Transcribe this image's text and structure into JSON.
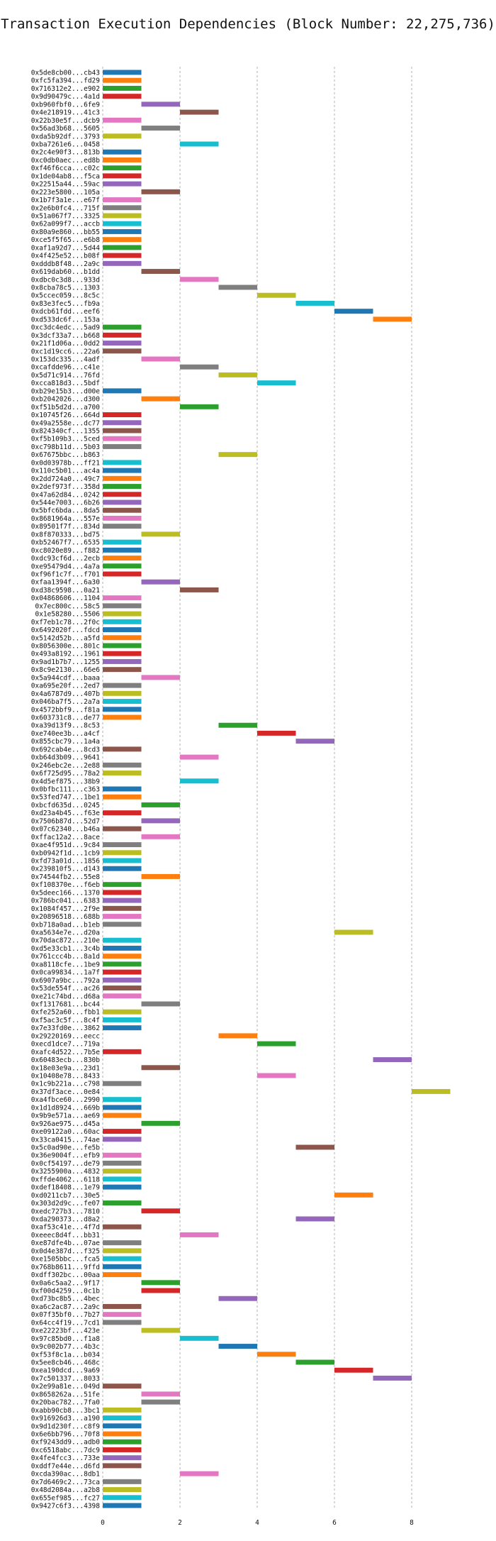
{
  "chart_data": {
    "type": "bar",
    "orientation": "horizontal-gantt",
    "title": "Transaction Execution Dependencies (Block Number: 22,275,736)",
    "xlabel": "",
    "ylabel": "",
    "xlim": [
      0,
      10
    ],
    "xticks": [
      0,
      2,
      4,
      6,
      8
    ],
    "grid": "vertical dashed",
    "palette": [
      "#1f77b4",
      "#ff7f0e",
      "#2ca02c",
      "#d62728",
      "#9467bd",
      "#8c564b",
      "#e377c2",
      "#7f7f7f",
      "#bcbd22",
      "#17becf"
    ],
    "tasks": [
      {
        "label": "0x5de8cb00...cb43",
        "start": 0,
        "end": 1
      },
      {
        "label": "0xfc5fa394...fd29",
        "start": 0,
        "end": 1
      },
      {
        "label": "0x716312e2...e902",
        "start": 0,
        "end": 1
      },
      {
        "label": "0x9d90479c...4a1d",
        "start": 0,
        "end": 1
      },
      {
        "label": "0xb960fbf0...6fe9",
        "start": 1,
        "end": 2
      },
      {
        "label": "0x4e218919...41c3",
        "start": 2,
        "end": 3
      },
      {
        "label": "0x22b30e5f...dcb9",
        "start": 0,
        "end": 1
      },
      {
        "label": "0x56ad3b68...5605",
        "start": 1,
        "end": 2
      },
      {
        "label": "0xda5b92df...3793",
        "start": 0,
        "end": 1
      },
      {
        "label": "0xba7261e6...0458",
        "start": 2,
        "end": 3
      },
      {
        "label": "0x2c4e90f3...813b",
        "start": 0,
        "end": 1
      },
      {
        "label": "0xc0db0aec...ed8b",
        "start": 0,
        "end": 1
      },
      {
        "label": "0xf46f6cca...c02c",
        "start": 0,
        "end": 1
      },
      {
        "label": "0x1de04ab8...f5ca",
        "start": 0,
        "end": 1
      },
      {
        "label": "0x22515a44...59ac",
        "start": 0,
        "end": 1
      },
      {
        "label": "0x223e5800...105a",
        "start": 1,
        "end": 2
      },
      {
        "label": "0x1b7f3a1e...e67f",
        "start": 0,
        "end": 1
      },
      {
        "label": "0x2e6b0fc4...715f",
        "start": 0,
        "end": 1
      },
      {
        "label": "0x51a067f7...3325",
        "start": 0,
        "end": 1
      },
      {
        "label": "0x62a099f7...accb",
        "start": 0,
        "end": 1
      },
      {
        "label": "0x80a9e860...bb55",
        "start": 0,
        "end": 1
      },
      {
        "label": "0xce5f5f65...e6b8",
        "start": 0,
        "end": 1
      },
      {
        "label": "0xaf1a92d7...5d44",
        "start": 0,
        "end": 1
      },
      {
        "label": "0x4f425e52...b08f",
        "start": 0,
        "end": 1
      },
      {
        "label": "0xdddb8f48...2a9c",
        "start": 0,
        "end": 1
      },
      {
        "label": "0x619dab60...b1dd",
        "start": 1,
        "end": 2
      },
      {
        "label": "0xdbc0c3d8...933d",
        "start": 2,
        "end": 3
      },
      {
        "label": "0x8cba78c5...1303",
        "start": 3,
        "end": 4
      },
      {
        "label": "0x5ccec059...8c5c",
        "start": 4,
        "end": 5
      },
      {
        "label": "0x83e3fec5...fb9a",
        "start": 5,
        "end": 6
      },
      {
        "label": "0xdcb61fdd...eef6",
        "start": 6,
        "end": 7
      },
      {
        "label": "0xd533dc6f...153a",
        "start": 7,
        "end": 8
      },
      {
        "label": "0xc3dc4edc...5ad9",
        "start": 0,
        "end": 1
      },
      {
        "label": "0x3dcf33a7...b668",
        "start": 0,
        "end": 1
      },
      {
        "label": "0x21f1d06a...0dd2",
        "start": 0,
        "end": 1
      },
      {
        "label": "0xc1d19cc6...22a6",
        "start": 0,
        "end": 1
      },
      {
        "label": "0x153dc335...4adf",
        "start": 1,
        "end": 2
      },
      {
        "label": "0xcafdde96...c41e",
        "start": 2,
        "end": 3
      },
      {
        "label": "0x5d71c914...76fd",
        "start": 3,
        "end": 4
      },
      {
        "label": "0xcca818d3...5bdf",
        "start": 4,
        "end": 5
      },
      {
        "label": "0xb29e15b3...d00e",
        "start": 0,
        "end": 1
      },
      {
        "label": "0xb2042026...d300",
        "start": 1,
        "end": 2
      },
      {
        "label": "0xf51b5d2d...a700",
        "start": 2,
        "end": 3
      },
      {
        "label": "0x10745f26...664d",
        "start": 0,
        "end": 1
      },
      {
        "label": "0x49a2558e...dc77",
        "start": 0,
        "end": 1
      },
      {
        "label": "0x824340cf...1355",
        "start": 0,
        "end": 1
      },
      {
        "label": "0xf5b109b3...5ced",
        "start": 0,
        "end": 1
      },
      {
        "label": "0xc798b11d...5b03",
        "start": 0,
        "end": 1
      },
      {
        "label": "0x67675bbc...b863",
        "start": 3,
        "end": 4
      },
      {
        "label": "0x0d03978b...ff21",
        "start": 0,
        "end": 1
      },
      {
        "label": "0x110c5b01...ac4a",
        "start": 0,
        "end": 1
      },
      {
        "label": "0x2dd724a0...49c7",
        "start": 0,
        "end": 1
      },
      {
        "label": "0x2def973f...358d",
        "start": 0,
        "end": 1
      },
      {
        "label": "0x47a62d84...0242",
        "start": 0,
        "end": 1
      },
      {
        "label": "0x544e7003...6b26",
        "start": 0,
        "end": 1
      },
      {
        "label": "0x5bfc6bda...8da5",
        "start": 0,
        "end": 1
      },
      {
        "label": "0x8681964a...557e",
        "start": 0,
        "end": 1
      },
      {
        "label": "0x89501f7f...834d",
        "start": 0,
        "end": 1
      },
      {
        "label": "0x8f870333...bd75",
        "start": 1,
        "end": 2
      },
      {
        "label": "0xb52467f7...6535",
        "start": 0,
        "end": 1
      },
      {
        "label": "0xc8020e89...f882",
        "start": 0,
        "end": 1
      },
      {
        "label": "0xdc93cf6d...2ecb",
        "start": 0,
        "end": 1
      },
      {
        "label": "0xe95479d4...4a7a",
        "start": 0,
        "end": 1
      },
      {
        "label": "0xf96f1c7f...f701",
        "start": 0,
        "end": 1
      },
      {
        "label": "0xfaa1394f...6a30",
        "start": 1,
        "end": 2
      },
      {
        "label": "0xd38c9598...0a21",
        "start": 2,
        "end": 3
      },
      {
        "label": "0x04868606...1104",
        "start": 0,
        "end": 1
      },
      {
        "label": "0x7ec800c...58c5",
        "start": 0,
        "end": 1
      },
      {
        "label": "0x1e58280...5506",
        "start": 0,
        "end": 1
      },
      {
        "label": "0xf7eb1c78...2f0c",
        "start": 0,
        "end": 1
      },
      {
        "label": "0x6492020f...fdcd",
        "start": 0,
        "end": 1
      },
      {
        "label": "0x5142d52b...a5fd",
        "start": 0,
        "end": 1
      },
      {
        "label": "0x8056300e...801c",
        "start": 0,
        "end": 1
      },
      {
        "label": "0x493a8192...1961",
        "start": 0,
        "end": 1
      },
      {
        "label": "0x9ad1b7b7...1255",
        "start": 0,
        "end": 1
      },
      {
        "label": "0x8c9e2130...66e6",
        "start": 0,
        "end": 1
      },
      {
        "label": "0x5a944cdf...baaa",
        "start": 1,
        "end": 2
      },
      {
        "label": "0xa695e20f...2ed7",
        "start": 0,
        "end": 1
      },
      {
        "label": "0x4a6787d9...407b",
        "start": 0,
        "end": 1
      },
      {
        "label": "0x046ba7f5...2a7a",
        "start": 0,
        "end": 1
      },
      {
        "label": "0x4572bbf9...f81a",
        "start": 0,
        "end": 1
      },
      {
        "label": "0x603731c8...de77",
        "start": 0,
        "end": 1
      },
      {
        "label": "0xa39d13f9...8c53",
        "start": 3,
        "end": 4
      },
      {
        "label": "0xe740ee3b...a4cf",
        "start": 4,
        "end": 5
      },
      {
        "label": "0x855cbc79...1a4a",
        "start": 5,
        "end": 6
      },
      {
        "label": "0x692cab4e...8cd3",
        "start": 0,
        "end": 1
      },
      {
        "label": "0xb64d3b09...9641",
        "start": 2,
        "end": 3
      },
      {
        "label": "0x246ebc2e...2e88",
        "start": 0,
        "end": 1
      },
      {
        "label": "0x6f725d95...78a2",
        "start": 0,
        "end": 1
      },
      {
        "label": "0x4d5ef875...38b9",
        "start": 2,
        "end": 3
      },
      {
        "label": "0x0bfbc111...c363",
        "start": 0,
        "end": 1
      },
      {
        "label": "0x53fed747...1be1",
        "start": 0,
        "end": 1
      },
      {
        "label": "0xbcfd635d...0245",
        "start": 1,
        "end": 2
      },
      {
        "label": "0xd23a4b45...f63e",
        "start": 0,
        "end": 1
      },
      {
        "label": "0x7506b87d...52d7",
        "start": 1,
        "end": 2
      },
      {
        "label": "0x07c62340...b46a",
        "start": 0,
        "end": 1
      },
      {
        "label": "0xffac12a2...8ace",
        "start": 1,
        "end": 2
      },
      {
        "label": "0xae4f951d...9c84",
        "start": 0,
        "end": 1
      },
      {
        "label": "0xb0942f1d...1cb9",
        "start": 0,
        "end": 1
      },
      {
        "label": "0xfd73a01d...1856",
        "start": 0,
        "end": 1
      },
      {
        "label": "0x239810f5...d143",
        "start": 0,
        "end": 1
      },
      {
        "label": "0x74544fb2...55e8",
        "start": 1,
        "end": 2
      },
      {
        "label": "0xf108370e...f6eb",
        "start": 0,
        "end": 1
      },
      {
        "label": "0x5deec166...1370",
        "start": 0,
        "end": 1
      },
      {
        "label": "0x786bc041...6383",
        "start": 0,
        "end": 1
      },
      {
        "label": "0x1084f457...2f9e",
        "start": 0,
        "end": 1
      },
      {
        "label": "0x20896518...688b",
        "start": 0,
        "end": 1
      },
      {
        "label": "0xb718a0ad...b1eb",
        "start": 0,
        "end": 1
      },
      {
        "label": "0xa5634e7e...d20a",
        "start": 6,
        "end": 7
      },
      {
        "label": "0x70dac872...210e",
        "start": 0,
        "end": 1
      },
      {
        "label": "0xd5e33cb1...3c4b",
        "start": 0,
        "end": 1
      },
      {
        "label": "0x761ccc4b...8a1d",
        "start": 0,
        "end": 1
      },
      {
        "label": "0xa8118cfe...1be9",
        "start": 0,
        "end": 1
      },
      {
        "label": "0x0ca99834...1a7f",
        "start": 0,
        "end": 1
      },
      {
        "label": "0x6907a9bc...792a",
        "start": 0,
        "end": 1
      },
      {
        "label": "0x53de554f...ac26",
        "start": 0,
        "end": 1
      },
      {
        "label": "0xe21c74bd...d68a",
        "start": 0,
        "end": 1
      },
      {
        "label": "0xf1317681...bc44",
        "start": 1,
        "end": 2
      },
      {
        "label": "0xfe252a60...fbb1",
        "start": 0,
        "end": 1
      },
      {
        "label": "0xf5ac3c5f...8c4f",
        "start": 0,
        "end": 1
      },
      {
        "label": "0x7e33fd0e...3862",
        "start": 0,
        "end": 1
      },
      {
        "label": "0x29220169...eecc",
        "start": 3,
        "end": 4
      },
      {
        "label": "0xecd1dce7...719a",
        "start": 4,
        "end": 5
      },
      {
        "label": "0xafc4d522...7b5e",
        "start": 0,
        "end": 1
      },
      {
        "label": "0x60483ecb...830b",
        "start": 7,
        "end": 8
      },
      {
        "label": "0x18e03e9a...23d1",
        "start": 1,
        "end": 2
      },
      {
        "label": "0x10408e78...8433",
        "start": 4,
        "end": 5
      },
      {
        "label": "0x1c9b221a...c798",
        "start": 0,
        "end": 1
      },
      {
        "label": "0x37df3ace...0e84",
        "start": 8,
        "end": 9
      },
      {
        "label": "0xa4fbce60...2990",
        "start": 0,
        "end": 1
      },
      {
        "label": "0x1d1d8924...669b",
        "start": 0,
        "end": 1
      },
      {
        "label": "0x9b9e571a...ae69",
        "start": 0,
        "end": 1
      },
      {
        "label": "0x926ae975...d45a",
        "start": 1,
        "end": 2
      },
      {
        "label": "0xe09122a0...60ac",
        "start": 0,
        "end": 1
      },
      {
        "label": "0x33ca0415...74ae",
        "start": 0,
        "end": 1
      },
      {
        "label": "0x5c0ad90e...fe5b",
        "start": 5,
        "end": 6
      },
      {
        "label": "0x36e9004f...efb9",
        "start": 0,
        "end": 1
      },
      {
        "label": "0x0cf54197...de79",
        "start": 0,
        "end": 1
      },
      {
        "label": "0x3255900a...4832",
        "start": 0,
        "end": 1
      },
      {
        "label": "0xffde4062...6118",
        "start": 0,
        "end": 1
      },
      {
        "label": "0xdef18408...1e79",
        "start": 0,
        "end": 1
      },
      {
        "label": "0xd0211cb7...30e5",
        "start": 6,
        "end": 7
      },
      {
        "label": "0x303d2d9c...fe07",
        "start": 0,
        "end": 1
      },
      {
        "label": "0xedc727b3...7810",
        "start": 1,
        "end": 2
      },
      {
        "label": "0xda290373...d8a2",
        "start": 5,
        "end": 6
      },
      {
        "label": "0xaf53c41e...4f7d",
        "start": 0,
        "end": 1
      },
      {
        "label": "0xeeec8d4f...bb31",
        "start": 2,
        "end": 3
      },
      {
        "label": "0xe87dfe4b...07ae",
        "start": 0,
        "end": 1
      },
      {
        "label": "0x0d4e387d...f325",
        "start": 0,
        "end": 1
      },
      {
        "label": "0xe1505bbc...fca5",
        "start": 0,
        "end": 1
      },
      {
        "label": "0x768b8611...9ffd",
        "start": 0,
        "end": 1
      },
      {
        "label": "0xdff302bc...00aa",
        "start": 0,
        "end": 1
      },
      {
        "label": "0x0a6c5aa2...9f17",
        "start": 1,
        "end": 2
      },
      {
        "label": "0xf00d4259...0c1b",
        "start": 1,
        "end": 2
      },
      {
        "label": "0xd73bc8b5...4bec",
        "start": 3,
        "end": 4
      },
      {
        "label": "0xa6c2ac87...2a9c",
        "start": 0,
        "end": 1
      },
      {
        "label": "0x07f35bf0...7b27",
        "start": 0,
        "end": 1
      },
      {
        "label": "0x64cc4f19...7cd1",
        "start": 0,
        "end": 1
      },
      {
        "label": "0xe22223bf...423e",
        "start": 1,
        "end": 2
      },
      {
        "label": "0x97c85bd0...f1a8",
        "start": 2,
        "end": 3
      },
      {
        "label": "0x9c002b77...4b3c",
        "start": 3,
        "end": 4
      },
      {
        "label": "0xf53f8c1a...b034",
        "start": 4,
        "end": 5
      },
      {
        "label": "0x5ee8cb46...468c",
        "start": 5,
        "end": 6
      },
      {
        "label": "0xea190dcd...9a69",
        "start": 6,
        "end": 7
      },
      {
        "label": "0x7c501337...8033",
        "start": 7,
        "end": 8
      },
      {
        "label": "0x2e99a81e...049d",
        "start": 0,
        "end": 1
      },
      {
        "label": "0x8658262a...51fe",
        "start": 1,
        "end": 2
      },
      {
        "label": "0x20bac782...7fa0",
        "start": 1,
        "end": 2
      },
      {
        "label": "0xabb90cb8...3bc1",
        "start": 0,
        "end": 1
      },
      {
        "label": "0x916926d3...a190",
        "start": 0,
        "end": 1
      },
      {
        "label": "0x9d1d230f...c8f9",
        "start": 0,
        "end": 1
      },
      {
        "label": "0x6e6bb796...70f8",
        "start": 0,
        "end": 1
      },
      {
        "label": "0xf9243dd9...adb0",
        "start": 0,
        "end": 1
      },
      {
        "label": "0xc6518abc...7dc9",
        "start": 0,
        "end": 1
      },
      {
        "label": "0x4fe4fcc3...733e",
        "start": 0,
        "end": 1
      },
      {
        "label": "0xddf7e44e...d6fd",
        "start": 0,
        "end": 1
      },
      {
        "label": "0xcda390ac...8db1",
        "start": 2,
        "end": 3
      },
      {
        "label": "0x7d6469c2...73ca",
        "start": 0,
        "end": 1
      },
      {
        "label": "0x48d2084a...a2b8",
        "start": 0,
        "end": 1
      },
      {
        "label": "0x655ef985...fc27",
        "start": 0,
        "end": 1
      },
      {
        "label": "0x9427c6f3...4398",
        "start": 0,
        "end": 1
      }
    ]
  }
}
